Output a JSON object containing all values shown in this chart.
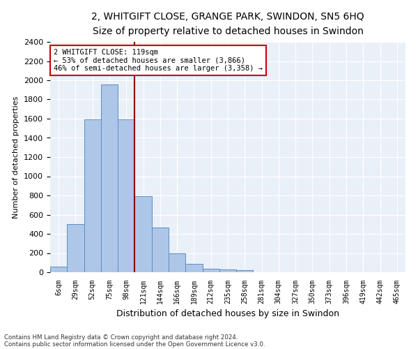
{
  "title1": "2, WHITGIFT CLOSE, GRANGE PARK, SWINDON, SN5 6HQ",
  "title2": "Size of property relative to detached houses in Swindon",
  "xlabel": "Distribution of detached houses by size in Swindon",
  "ylabel": "Number of detached properties",
  "bar_labels": [
    "6sqm",
    "29sqm",
    "52sqm",
    "75sqm",
    "98sqm",
    "121sqm",
    "144sqm",
    "166sqm",
    "189sqm",
    "212sqm",
    "235sqm",
    "258sqm",
    "281sqm",
    "304sqm",
    "327sqm",
    "350sqm",
    "373sqm",
    "396sqm",
    "419sqm",
    "442sqm",
    "465sqm"
  ],
  "bar_heights": [
    60,
    500,
    1590,
    1960,
    1590,
    790,
    465,
    200,
    90,
    35,
    30,
    20,
    0,
    0,
    0,
    0,
    0,
    0,
    0,
    0,
    0
  ],
  "bar_color": "#aec6e8",
  "bar_edge_color": "#5a8fc2",
  "vline_pos": 4.5,
  "vline_color": "#8b0000",
  "annotation_text": "2 WHITGIFT CLOSE: 119sqm\n← 53% of detached houses are smaller (3,866)\n46% of semi-detached houses are larger (3,358) →",
  "annotation_box_color": "#ffffff",
  "annotation_box_edge_color": "#cc0000",
  "ylim": [
    0,
    2400
  ],
  "yticks": [
    0,
    200,
    400,
    600,
    800,
    1000,
    1200,
    1400,
    1600,
    1800,
    2000,
    2200,
    2400
  ],
  "footnote1": "Contains HM Land Registry data © Crown copyright and database right 2024.",
  "footnote2": "Contains public sector information licensed under the Open Government Licence v3.0.",
  "background_color": "#eaf0f8",
  "grid_color": "#ffffff",
  "title_fontsize": 10,
  "subtitle_fontsize": 9
}
